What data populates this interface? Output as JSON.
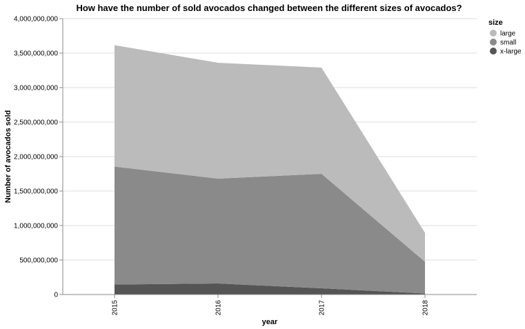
{
  "chart_data": {
    "type": "area",
    "stacked": true,
    "title": "How have the number of sold avocados changed between the different sizes of avocados?",
    "xlabel": "year",
    "ylabel": "Number of avocados sold",
    "x": [
      "2015",
      "2016",
      "2017",
      "2018"
    ],
    "ylim": [
      0,
      4000000000
    ],
    "yticks": [
      "0",
      "500,000,000",
      "1,000,000,000",
      "1,500,000,000",
      "2,000,000,000",
      "2,500,000,000",
      "3,000,000,000",
      "3,500,000,000",
      "4,000,000,000"
    ],
    "grid": true,
    "legend": {
      "title": "size",
      "placement": "top-right"
    },
    "series": [
      {
        "name": "large",
        "color": "#bbbbbb",
        "values": [
          1760000000,
          1680000000,
          1540000000,
          420000000
        ]
      },
      {
        "name": "small",
        "color": "#8a8a8a",
        "values": [
          1710000000,
          1520000000,
          1660000000,
          460000000
        ]
      },
      {
        "name": "x-large",
        "color": "#555555",
        "values": [
          145000000,
          160000000,
          90000000,
          15000000
        ]
      }
    ]
  }
}
